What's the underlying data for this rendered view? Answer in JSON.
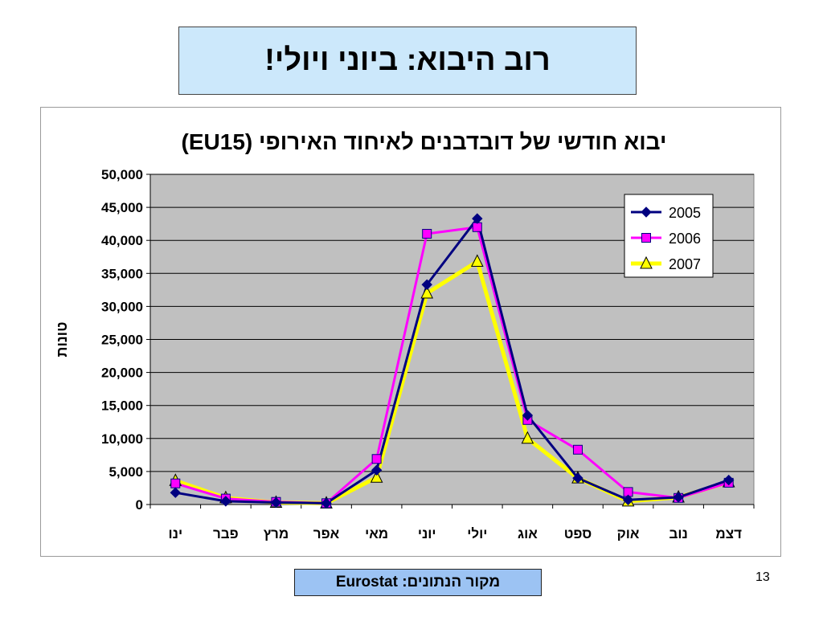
{
  "slide": {
    "title": "רוב היבוא: ביוני ויולי!",
    "source": "מקור הנתונים: Eurostat",
    "page_number": "13"
  },
  "chart_data": {
    "type": "line",
    "title": "יבוא חודשי של דובדבנים לאיחוד האירופי (EU15)",
    "xlabel": "",
    "ylabel": "טונות",
    "categories": [
      "ינו",
      "פבר",
      "מרץ",
      "אפר",
      "מאי",
      "יוני",
      "יולי",
      "אוג",
      "ספט",
      "אוק",
      "נוב",
      "דצמ"
    ],
    "ylim": [
      0,
      50000
    ],
    "y_ticks": [
      "0",
      "5,000",
      "10,000",
      "15,000",
      "20,000",
      "25,000",
      "30,000",
      "35,000",
      "40,000",
      "45,000",
      "50,000"
    ],
    "grid": true,
    "legend_position": "top-right",
    "plot_background": "#c0c0c0",
    "series": [
      {
        "name": "2005",
        "color": "#000080",
        "marker": "diamond",
        "values": [
          1800,
          500,
          300,
          200,
          5200,
          33300,
          43300,
          13500,
          4000,
          700,
          1100,
          3700
        ]
      },
      {
        "name": "2006",
        "color": "#ff00ff",
        "marker": "square",
        "values": [
          3200,
          900,
          400,
          200,
          6900,
          41000,
          42000,
          12800,
          8300,
          1900,
          1000,
          3300
        ]
      },
      {
        "name": "2007",
        "color": "#ffff00",
        "marker": "triangle",
        "values": [
          3600,
          1000,
          300,
          200,
          4100,
          32000,
          36800,
          10000,
          4000,
          500,
          1100,
          3400
        ]
      }
    ]
  }
}
